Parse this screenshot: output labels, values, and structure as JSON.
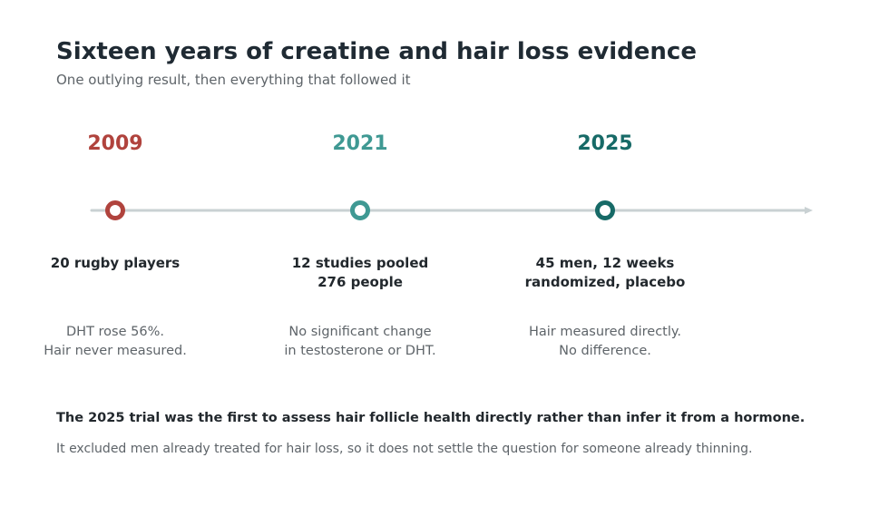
{
  "title": "Sixteen years of creatine and hair loss evidence",
  "subtitle": "One outlying result, then everything that followed it",
  "colors": {
    "axis": "#c9d1d3",
    "title": "#1f2a33",
    "muted": "#5e6469"
  },
  "milestones": [
    {
      "year": "2009",
      "color": "#b0433d",
      "headline": [
        "20 rugby players"
      ],
      "detail": [
        "DHT rose 56%.",
        "Hair never measured."
      ]
    },
    {
      "year": "2021",
      "color": "#3f9993",
      "headline": [
        "12 studies pooled",
        "276 people"
      ],
      "detail": [
        "No significant change",
        "in testosterone or DHT."
      ]
    },
    {
      "year": "2025",
      "color": "#176a67",
      "headline": [
        "45 men, 12 weeks",
        "randomized, placebo"
      ],
      "detail": [
        "Hair measured directly.",
        "No difference."
      ]
    }
  ],
  "footnote": {
    "main": "The 2025 trial was the first to assess hair follicle health directly rather than infer it from a hormone.",
    "sub": "It excluded men already treated for hair loss, so it does not settle the question for someone already thinning."
  }
}
